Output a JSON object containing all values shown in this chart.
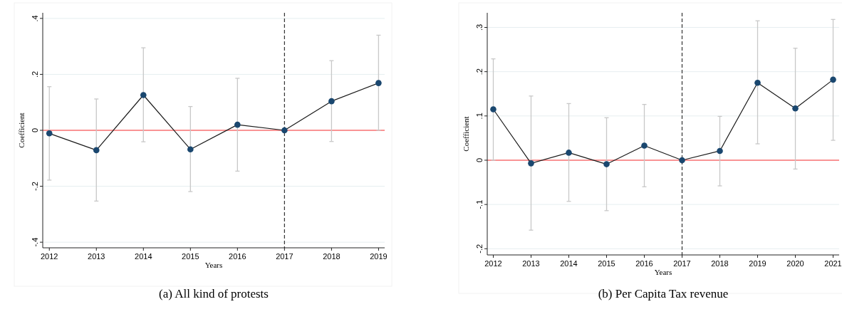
{
  "chart_data": [
    {
      "type": "line",
      "title": "(a) All kind of protests",
      "xlabel": "Years",
      "ylabel": "Coefficient",
      "x": [
        2012,
        2013,
        2014,
        2015,
        2016,
        2017,
        2018,
        2019
      ],
      "xlim": [
        2011.86,
        2019.13
      ],
      "xticks": [
        2012,
        2013,
        2014,
        2015,
        2016,
        2017,
        2018,
        2019
      ],
      "ylim": [
        -0.42,
        0.42
      ],
      "yticks": [
        {
          "value": -0.4,
          "label": "-.4"
        },
        {
          "value": -0.2,
          "label": "-.2"
        },
        0,
        {
          "value": 0.2,
          "label": ".2"
        },
        {
          "value": 0.4,
          "label": ".4"
        }
      ],
      "grid": "y",
      "marker": "circle",
      "line_style": "solid",
      "series": [
        {
          "color": "#1a476f",
          "values": [
            -0.011,
            -0.071,
            0.126,
            -0.068,
            0.02,
            0,
            0.104,
            0.169
          ],
          "errors": [
            [
              -0.178,
              0.156
            ],
            [
              -0.253,
              0.112
            ],
            [
              -0.041,
              0.295
            ],
            [
              -0.219,
              0.085
            ],
            [
              -0.146,
              0.186
            ],
            null,
            [
              -0.04,
              0.249
            ],
            [
              0,
              0.34
            ]
          ]
        }
      ],
      "ref_lines": [
        {
          "axis": "x",
          "value": 2017,
          "color": "#333333",
          "line_style": "dashed"
        },
        {
          "axis": "y",
          "value": 0,
          "color": "#ff3333",
          "line_style": "solid"
        }
      ]
    },
    {
      "type": "line",
      "title": "(b) Per Capita Tax revenue",
      "xlabel": "Years",
      "ylabel": "Coefficient",
      "x": [
        2012,
        2013,
        2014,
        2015,
        2016,
        2017,
        2018,
        2019,
        2020,
        2021
      ],
      "xlim": [
        2011.84,
        2021.16
      ],
      "xticks": [
        2012,
        2013,
        2014,
        2015,
        2016,
        2017,
        2018,
        2019,
        2020,
        2021
      ],
      "ylim": [
        -0.214,
        0.333
      ],
      "yticks": [
        {
          "value": -0.2,
          "label": "-.2"
        },
        {
          "value": -0.1,
          "label": "-.1"
        },
        0,
        {
          "value": 0.1,
          "label": ".1"
        },
        {
          "value": 0.2,
          "label": ".2"
        },
        {
          "value": 0.3,
          "label": ".3"
        }
      ],
      "grid": "y",
      "marker": "circle",
      "line_style": "solid",
      "series": [
        {
          "color": "#1a476f",
          "values": [
            0.115,
            -0.007,
            0.017,
            -0.009,
            0.033,
            0,
            0.021,
            0.175,
            0.117,
            0.182
          ],
          "errors": [
            [
              0,
              0.229
            ],
            [
              -0.158,
              0.145
            ],
            [
              -0.093,
              0.128
            ],
            [
              -0.114,
              0.096
            ],
            [
              -0.06,
              0.126
            ],
            null,
            [
              -0.058,
              0.099
            ],
            [
              0.037,
              0.315
            ],
            [
              -0.02,
              0.253
            ],
            [
              0.045,
              0.318
            ]
          ]
        }
      ],
      "ref_lines": [
        {
          "axis": "x",
          "value": 2017,
          "color": "#333333",
          "line_style": "dashed"
        },
        {
          "axis": "y",
          "value": 0,
          "color": "#ff3333",
          "line_style": "solid"
        }
      ]
    }
  ]
}
